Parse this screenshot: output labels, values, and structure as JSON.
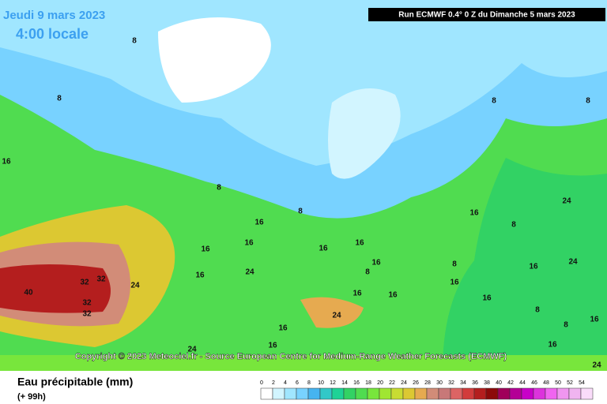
{
  "header": {
    "date": "Jeudi 9 mars 2023",
    "time": "4:00 locale",
    "run": "Run ECMWF 0.4° 0 Z du Dimanche 5 mars 2023"
  },
  "copyright": "Copyright © 2023 Meteociel.fr - Source European Centre for Medium-Range Weather Forecasts (ECMWF)",
  "legend": {
    "title": "Eau précipitable (mm)",
    "lead": "(+ 99h)",
    "ticks": [
      0,
      2,
      4,
      6,
      8,
      10,
      12,
      14,
      16,
      18,
      20,
      22,
      24,
      26,
      28,
      30,
      32,
      34,
      36,
      38,
      40,
      42,
      44,
      46,
      48,
      50,
      52,
      54
    ],
    "colors": [
      "#ffffff",
      "#d2f5ff",
      "#a0e6ff",
      "#78d2ff",
      "#46b4f0",
      "#32c8c8",
      "#1ed296",
      "#32d264",
      "#50dc50",
      "#78e63c",
      "#a0e632",
      "#c8dc32",
      "#dcc832",
      "#e6aa50",
      "#d28c78",
      "#c87878",
      "#dc6464",
      "#d23c3c",
      "#b41e1e",
      "#8c0a0a",
      "#a0005a",
      "#b40096",
      "#c800c8",
      "#dc32dc",
      "#f064f0",
      "#f096f0",
      "#f0b4f0",
      "#fadcfa"
    ]
  },
  "contour_labels": [
    8,
    8,
    8,
    8,
    16,
    8,
    8,
    8,
    8,
    8,
    16,
    16,
    16,
    16,
    16,
    16,
    24,
    16,
    16,
    16,
    16,
    16,
    32,
    32,
    40,
    32,
    32,
    24,
    24,
    24,
    24,
    24,
    16,
    16,
    16,
    8,
    8,
    16,
    24,
    16,
    16
  ]
}
